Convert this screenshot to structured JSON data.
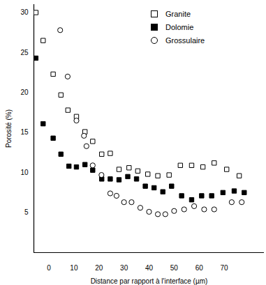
{
  "chart_data": {
    "type": "scatter",
    "x_label": "Distance par rapport à l'interface (µm)",
    "y_label": "Porosité (%)",
    "xlim": [
      -6,
      86
    ],
    "xticks": [
      0,
      10,
      20,
      30,
      40,
      50,
      60,
      70
    ],
    "ylim": [
      0,
      31
    ],
    "yticks": [
      5,
      10,
      15,
      20,
      25,
      30
    ],
    "grid": false,
    "legend": "top-right",
    "series": [
      {
        "name": "Granite",
        "color": "#000000",
        "marker": "open-square",
        "x": [
          -5.2,
          -2.3,
          1.7,
          4.8,
          7.6,
          11,
          14.4,
          17.5,
          21.1,
          24.5,
          28,
          32,
          35.5,
          39.5,
          43.5,
          48,
          52.5,
          57,
          61.5,
          66,
          71,
          76
        ],
        "values": [
          30,
          26.5,
          22.3,
          19.7,
          17.8,
          17,
          15.1,
          13.9,
          12.3,
          12.4,
          10.4,
          10.6,
          10.2,
          9.8,
          9.6,
          9.7,
          10.9,
          10.9,
          10.7,
          11.2,
          10.4,
          9.6
        ]
      },
      {
        "name": "Dolomie",
        "color": "#000000",
        "marker": "filled-square",
        "x": [
          -5.2,
          -2.3,
          1.7,
          4.8,
          8,
          11,
          14.4,
          17.5,
          21.1,
          24.5,
          28,
          31.5,
          35,
          38.5,
          42,
          45.5,
          49,
          53,
          57,
          61,
          65,
          69.5,
          74,
          78
        ],
        "values": [
          24.3,
          16.1,
          14.3,
          12.3,
          10.8,
          10.7,
          11,
          10.3,
          9.2,
          9.2,
          9.1,
          9.5,
          9.2,
          8.3,
          8.1,
          7.6,
          8.3,
          7.1,
          6.6,
          7.1,
          7.1,
          7.5,
          7.7,
          7.5
        ]
      },
      {
        "name": "Grossulaire",
        "color": "#000000",
        "marker": "open-circle",
        "x": [
          4.5,
          7.5,
          11,
          14,
          15,
          17.5,
          21,
          24.5,
          27,
          30,
          33,
          36.5,
          40,
          43.5,
          46.5,
          50,
          54,
          58,
          62,
          66,
          73,
          77
        ],
        "values": [
          27.8,
          22,
          16.5,
          14.6,
          13.3,
          10.9,
          9.7,
          7.4,
          7.1,
          6.3,
          6.3,
          5.6,
          5.1,
          4.8,
          4.8,
          5.2,
          5.4,
          5.8,
          5.4,
          5.4,
          6.3,
          6.3
        ]
      }
    ]
  }
}
